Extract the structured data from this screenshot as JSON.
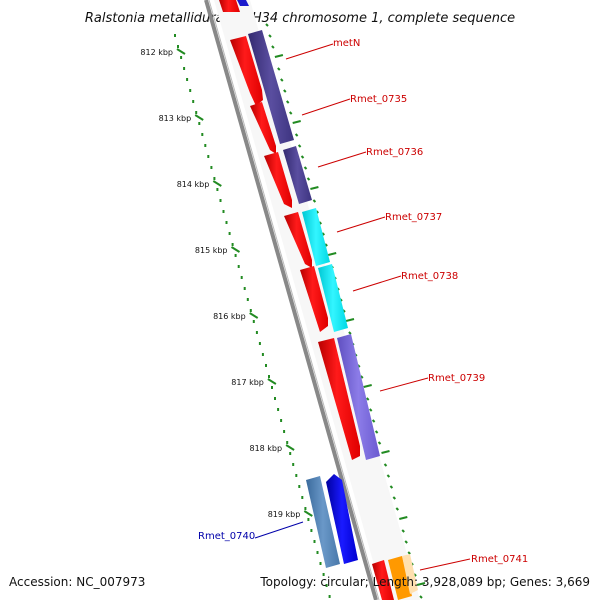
{
  "title": "Ralstonia metallidurans CH34 chromosome 1, complete sequence",
  "footer": {
    "accession": "Accession: NC_007973",
    "summary": "Topology: circular; Length: 3,928,089 bp; Genes: 3,669"
  },
  "scale_ticks": [
    {
      "label": "812 kbp"
    },
    {
      "label": "813 kbp"
    },
    {
      "label": "814 kbp"
    },
    {
      "label": "815 kbp"
    },
    {
      "label": "816 kbp"
    },
    {
      "label": "817 kbp"
    },
    {
      "label": "818 kbp"
    },
    {
      "label": "819 kbp"
    }
  ],
  "genes": [
    {
      "name": "metN",
      "color": "#cc0000",
      "strand": "forward"
    },
    {
      "name": "Rmet_0735",
      "color": "#cc0000",
      "strand": "forward"
    },
    {
      "name": "Rmet_0736",
      "color": "#cc0000",
      "strand": "forward"
    },
    {
      "name": "Rmet_0737",
      "color": "#cc0000",
      "strand": "forward"
    },
    {
      "name": "Rmet_0738",
      "color": "#cc0000",
      "strand": "forward"
    },
    {
      "name": "Rmet_0739",
      "color": "#cc0000",
      "strand": "forward"
    },
    {
      "name": "Rmet_0740",
      "color": "#0000aa",
      "strand": "reverse"
    },
    {
      "name": "Rmet_0741",
      "color": "#cc0000",
      "strand": "forward"
    }
  ],
  "colors": {
    "cds_forward": "#ff0000",
    "cds_reverse": "#0000ee",
    "cog_purple": "#4a3f8c",
    "cog_cyan": "#00e5ee",
    "cog_lavender": "#7b68d6",
    "cog_steelblue": "#4f7fb0",
    "cog_orange": "#ff9900",
    "backbone": "#888888",
    "tick_green": "#228b22"
  }
}
